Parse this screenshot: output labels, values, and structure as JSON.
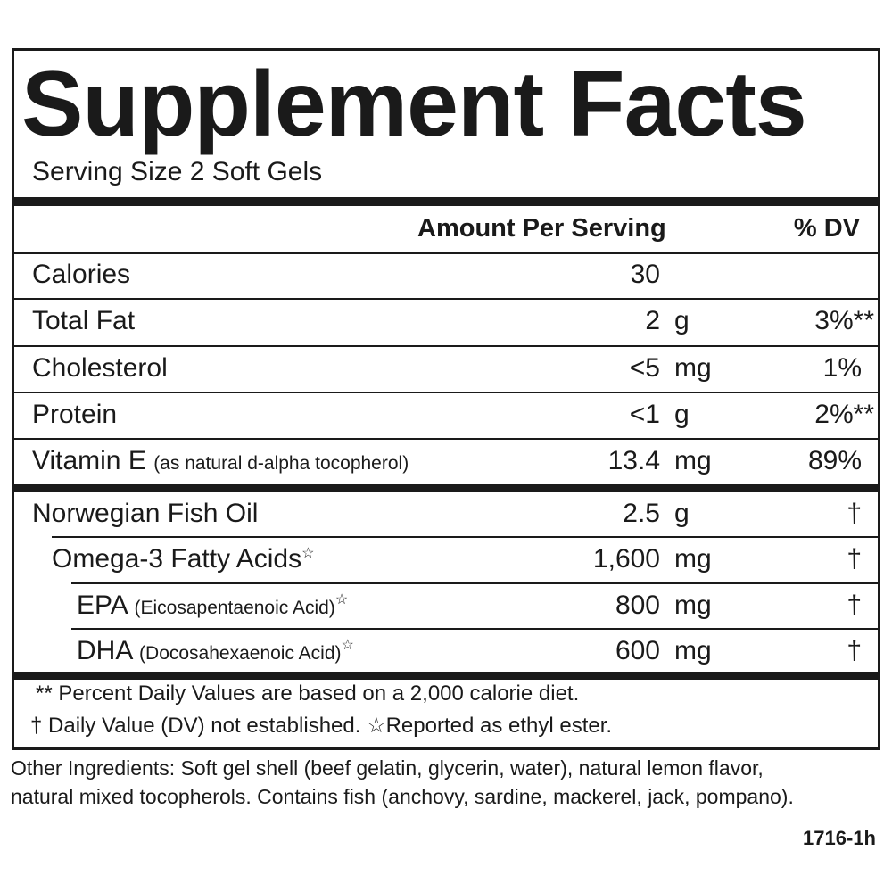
{
  "title": "Supplement Facts",
  "serving_size": "Serving Size 2 Soft Gels",
  "header": {
    "amount": "Amount Per Serving",
    "dv": "% DV"
  },
  "nutrients": [
    {
      "name": "Calories",
      "qty": "30",
      "unit": "",
      "dv": ""
    },
    {
      "name": "Total Fat",
      "qty": "2",
      "unit": "g",
      "dv": "3%**"
    },
    {
      "name": "Cholesterol",
      "qty": "<5",
      "unit": "mg",
      "dv": "1%"
    },
    {
      "name": "Protein",
      "qty": "<1",
      "unit": "g",
      "dv": "2%**"
    },
    {
      "name": "Vitamin E",
      "sub": "(as natural d-alpha tocopherol)",
      "qty": "13.4",
      "unit": "mg",
      "dv": "89%"
    }
  ],
  "ingredients": [
    {
      "name": "Norwegian Fish Oil",
      "sub": "",
      "star": "",
      "qty": "2.5",
      "unit": "g",
      "dv": "†"
    },
    {
      "name": "Omega-3 Fatty Acids",
      "sub": "",
      "star": "☆",
      "qty": "1,600",
      "unit": "mg",
      "dv": "†"
    },
    {
      "name": "EPA",
      "sub": "(Eicosapentaenoic Acid)",
      "star": "☆",
      "qty": "800",
      "unit": "mg",
      "dv": "†"
    },
    {
      "name": "DHA",
      "sub": "(Docosahexaenoic Acid)",
      "star": "☆",
      "qty": "600",
      "unit": "mg",
      "dv": "†"
    }
  ],
  "footnotes": [
    "** Percent Daily Values are based on a 2,000 calorie diet.",
    "† Daily Value (DV) not established.  ☆Reported as ethyl ester."
  ],
  "other_ingredients": [
    "Other Ingredients: Soft gel shell (beef gelatin, glycerin, water), natural lemon flavor,",
    "natural mixed tocopherols. Contains fish (anchovy, sardine, mackerel, jack, pompano)."
  ],
  "code": "1716-1h"
}
